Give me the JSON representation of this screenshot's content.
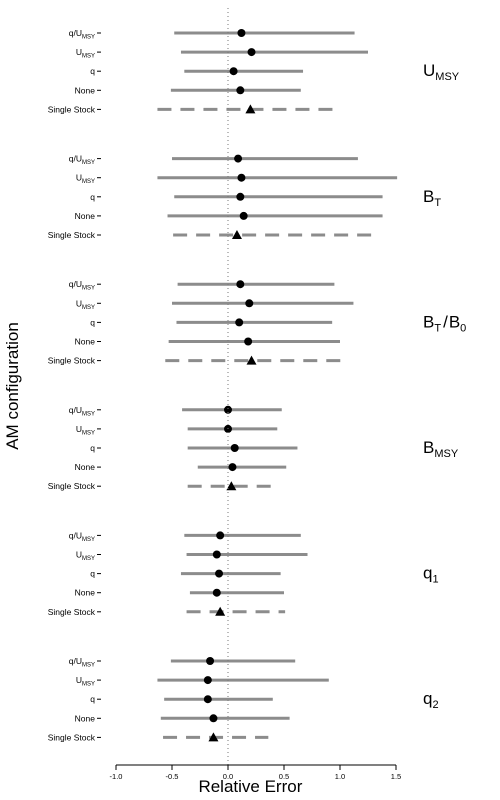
{
  "chart_data": {
    "type": "dot-interval",
    "xlabel": "Relative Error",
    "ylabel": "AM configuration",
    "xlim": [
      -1.0,
      1.5
    ],
    "x_ticks": [
      "-1.0",
      "-0.5",
      "0.0",
      "0.5",
      "1.0",
      "1.5"
    ],
    "x_tick_values": [
      -1.0,
      -0.5,
      0.0,
      0.5,
      1.0,
      1.5
    ],
    "reference_line": {
      "x": 0,
      "style": "dotted"
    },
    "legend": "none",
    "grid": false,
    "marker_types": {
      "multi_stock": "circle",
      "single_stock": "triangle"
    },
    "line_styles": {
      "multi_stock": "solid",
      "single_stock": "dashed"
    },
    "colors": {
      "interval": "#8c8c8c",
      "point": "#000000",
      "reference": "#777777"
    },
    "panels": [
      {
        "param": "U",
        "sub": "MSY",
        "sep": null,
        "param2": null,
        "sub2": null,
        "rows": [
          {
            "label": "q/U",
            "label_sub": "MSY",
            "point": 0.12,
            "low": -0.48,
            "high": 1.13,
            "single": false
          },
          {
            "label": "U",
            "label_sub": "MSY",
            "point": 0.21,
            "low": -0.42,
            "high": 1.25,
            "single": false
          },
          {
            "label": "q",
            "label_sub": "",
            "point": 0.05,
            "low": -0.39,
            "high": 0.67,
            "single": false
          },
          {
            "label": "None",
            "label_sub": "",
            "point": 0.11,
            "low": -0.51,
            "high": 0.65,
            "single": false
          },
          {
            "label": "Single Stock",
            "label_sub": "",
            "point": 0.2,
            "low": -0.63,
            "high": 0.94,
            "single": true
          }
        ]
      },
      {
        "param": "B",
        "sub": "T",
        "sep": null,
        "param2": null,
        "sub2": null,
        "rows": [
          {
            "label": "q/U",
            "label_sub": "MSY",
            "point": 0.09,
            "low": -0.5,
            "high": 1.16,
            "single": false
          },
          {
            "label": "U",
            "label_sub": "MSY",
            "point": 0.12,
            "low": -0.63,
            "high": 1.51,
            "single": false
          },
          {
            "label": "q",
            "label_sub": "",
            "point": 0.11,
            "low": -0.48,
            "high": 1.38,
            "single": false
          },
          {
            "label": "None",
            "label_sub": "",
            "point": 0.14,
            "low": -0.54,
            "high": 1.38,
            "single": false
          },
          {
            "label": "Single Stock",
            "label_sub": "",
            "point": 0.08,
            "low": -0.49,
            "high": 1.35,
            "single": true
          }
        ]
      },
      {
        "param": "B",
        "sub": "T",
        "sep": "/",
        "param2": "B",
        "sub2": "0",
        "rows": [
          {
            "label": "q/U",
            "label_sub": "MSY",
            "point": 0.11,
            "low": -0.45,
            "high": 0.95,
            "single": false
          },
          {
            "label": "U",
            "label_sub": "MSY",
            "point": 0.19,
            "low": -0.5,
            "high": 1.12,
            "single": false
          },
          {
            "label": "q",
            "label_sub": "",
            "point": 0.1,
            "low": -0.46,
            "high": 0.93,
            "single": false
          },
          {
            "label": "None",
            "label_sub": "",
            "point": 0.18,
            "low": -0.53,
            "high": 1.0,
            "single": false
          },
          {
            "label": "Single Stock",
            "label_sub": "",
            "point": 0.21,
            "low": -0.56,
            "high": 1.03,
            "single": true
          }
        ]
      },
      {
        "param": "B",
        "sub": "MSY",
        "sep": null,
        "param2": null,
        "sub2": null,
        "rows": [
          {
            "label": "q/U",
            "label_sub": "MSY",
            "point": 0.0,
            "low": -0.41,
            "high": 0.48,
            "single": false
          },
          {
            "label": "U",
            "label_sub": "MSY",
            "point": 0.0,
            "low": -0.36,
            "high": 0.44,
            "single": false
          },
          {
            "label": "q",
            "label_sub": "",
            "point": 0.06,
            "low": -0.36,
            "high": 0.62,
            "single": false
          },
          {
            "label": "None",
            "label_sub": "",
            "point": 0.04,
            "low": -0.27,
            "high": 0.52,
            "single": false
          },
          {
            "label": "Single Stock",
            "label_sub": "",
            "point": 0.03,
            "low": -0.36,
            "high": 0.43,
            "single": true
          }
        ]
      },
      {
        "param": "q",
        "sub": "1",
        "sep": null,
        "param2": null,
        "sub2": null,
        "rows": [
          {
            "label": "q/U",
            "label_sub": "MSY",
            "point": -0.07,
            "low": -0.39,
            "high": 0.65,
            "single": false
          },
          {
            "label": "U",
            "label_sub": "MSY",
            "point": -0.1,
            "low": -0.37,
            "high": 0.71,
            "single": false
          },
          {
            "label": "q",
            "label_sub": "",
            "point": -0.08,
            "low": -0.42,
            "high": 0.47,
            "single": false
          },
          {
            "label": "None",
            "label_sub": "",
            "point": -0.1,
            "low": -0.34,
            "high": 0.5,
            "single": false
          },
          {
            "label": "Single Stock",
            "label_sub": "",
            "point": -0.07,
            "low": -0.37,
            "high": 0.51,
            "single": true
          }
        ]
      },
      {
        "param": "q",
        "sub": "2",
        "sep": null,
        "param2": null,
        "sub2": null,
        "rows": [
          {
            "label": "q/U",
            "label_sub": "MSY",
            "point": -0.16,
            "low": -0.51,
            "high": 0.6,
            "single": false
          },
          {
            "label": "U",
            "label_sub": "MSY",
            "point": -0.18,
            "low": -0.63,
            "high": 0.9,
            "single": false
          },
          {
            "label": "q",
            "label_sub": "",
            "point": -0.18,
            "low": -0.57,
            "high": 0.4,
            "single": false
          },
          {
            "label": "None",
            "label_sub": "",
            "point": -0.13,
            "low": -0.6,
            "high": 0.55,
            "single": false
          },
          {
            "label": "Single Stock",
            "label_sub": "",
            "point": -0.13,
            "low": -0.58,
            "high": 0.36,
            "single": true
          }
        ]
      }
    ]
  }
}
